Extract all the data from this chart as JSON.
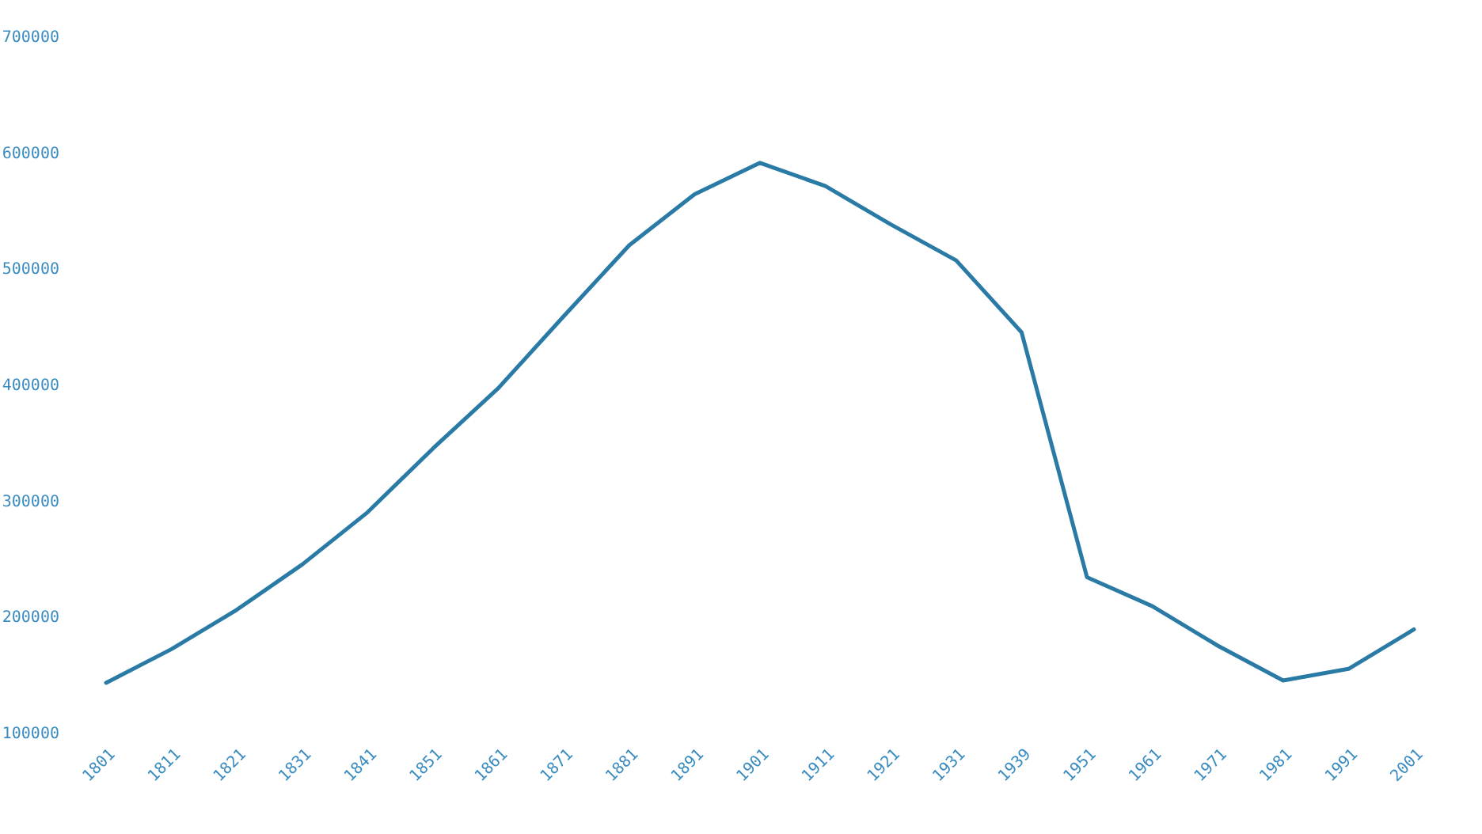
{
  "chart_data": {
    "type": "line",
    "categories": [
      "1801",
      "1811",
      "1821",
      "1831",
      "1841",
      "1851",
      "1861",
      "1871",
      "1881",
      "1891",
      "1901",
      "1911",
      "1921",
      "1931",
      "1939",
      "1951",
      "1961",
      "1971",
      "1981",
      "1991",
      "2001"
    ],
    "series": [
      {
        "color": "#2a7aa6",
        "values": [
          143000,
          172000,
          206000,
          245000,
          290000,
          345000,
          397000,
          459000,
          520000,
          564000,
          591000,
          571000,
          538000,
          507000,
          445000,
          234000,
          209000,
          175000,
          145000,
          155000,
          189000
        ]
      }
    ],
    "ylim": [
      100000,
      700000
    ],
    "yticks": [
      100000,
      200000,
      300000,
      400000,
      500000,
      600000,
      700000
    ],
    "grid": false,
    "legend": false,
    "marker": "none",
    "line_style": "solid"
  }
}
